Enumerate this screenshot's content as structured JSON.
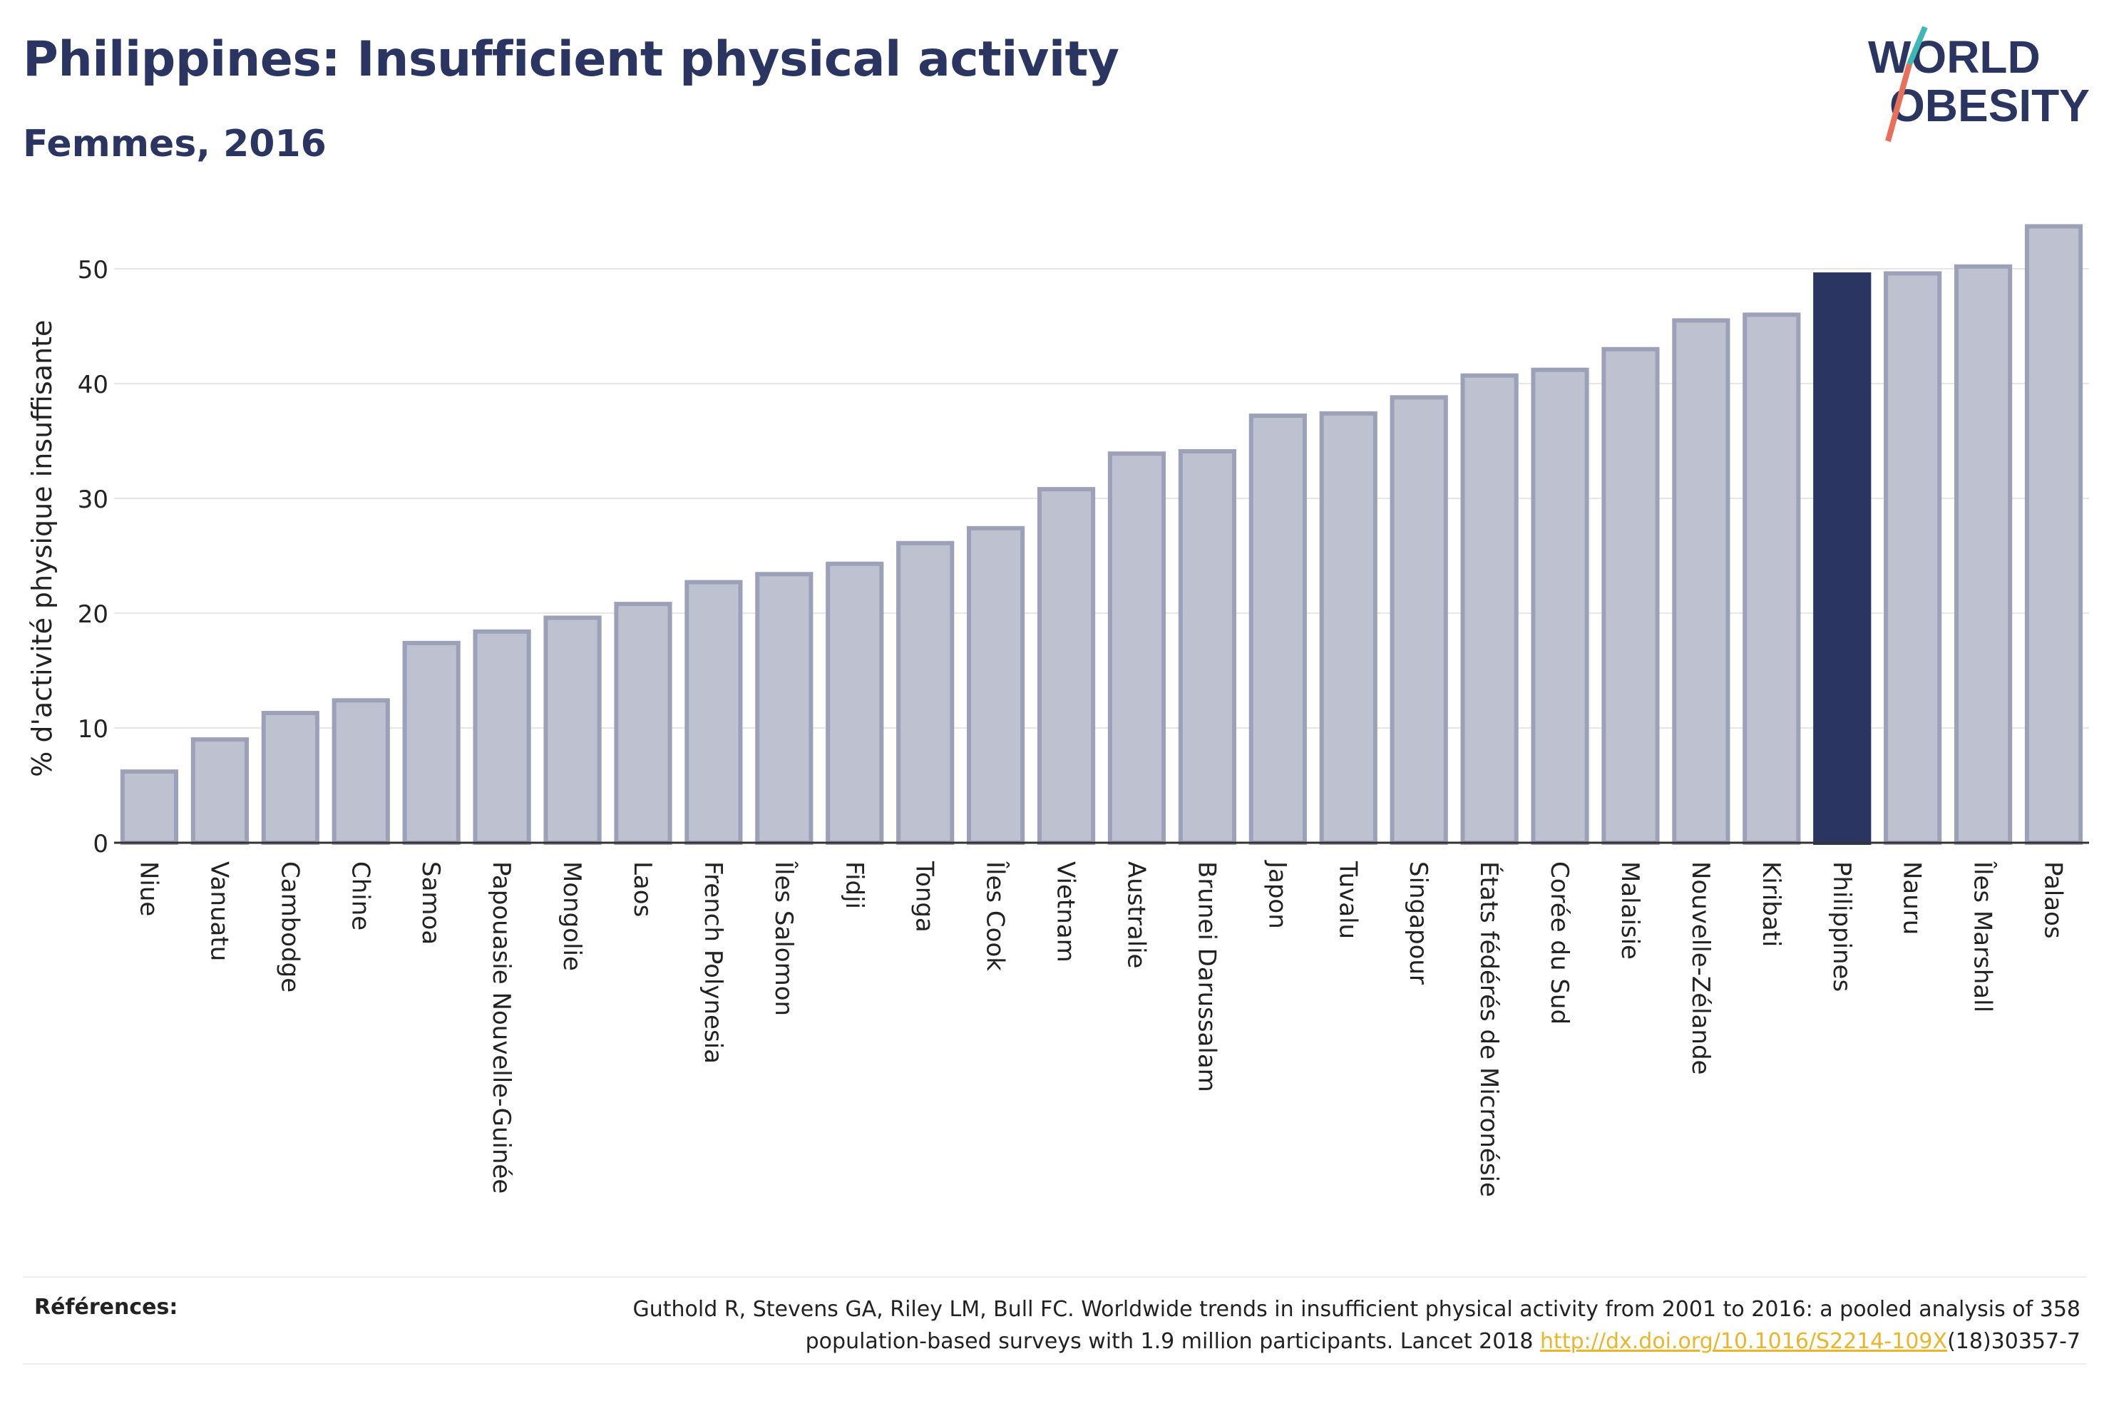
{
  "header": {
    "title": "Philippines: Insufficient physical activity",
    "subtitle": "Femmes, 2016"
  },
  "logo": {
    "line1": "WORLD",
    "line2": "OBESITY"
  },
  "chart_data": {
    "type": "bar",
    "ylabel": "% d'activité physique insuffisante",
    "xlabel": "",
    "ylim": [
      0,
      55
    ],
    "yticks": [
      0,
      10,
      20,
      30,
      40,
      50
    ],
    "grid": true,
    "highlight": "Philippines",
    "colors": {
      "bar": "#bec1cf",
      "bar_border": "#9da1b8",
      "highlight": "#2b3561",
      "text": "#222222"
    },
    "categories": [
      "Niue",
      "Vanuatu",
      "Cambodge",
      "Chine",
      "Samoa",
      "Papouasie Nouvelle-Guinée",
      "Mongolie",
      "Laos",
      "French Polynesia",
      "Îles Salomon",
      "Fidji",
      "Tonga",
      "Îles Cook",
      "Vietnam",
      "Australie",
      "Brunei Darussalam",
      "Japon",
      "Tuvalu",
      "Singapour",
      "États fédérés de Micronésie",
      "Corée du Sud",
      "Malaisie",
      "Nouvelle-Zélande",
      "Kiribati",
      "Philippines",
      "Nauru",
      "Îles Marshall",
      "Palaos"
    ],
    "values": [
      6.2,
      9.0,
      11.3,
      12.4,
      17.4,
      18.4,
      19.6,
      20.8,
      22.7,
      23.4,
      24.3,
      26.1,
      27.4,
      30.8,
      33.9,
      34.1,
      37.2,
      37.4,
      38.8,
      40.7,
      41.2,
      43.0,
      45.5,
      46.0,
      49.5,
      49.6,
      50.2,
      53.7
    ]
  },
  "references": {
    "label": "Références:",
    "line1": "Guthold R, Stevens GA, Riley LM, Bull FC. Worldwide trends in insufficient physical activity from 2001 to 2016: a pooled analysis of 358",
    "line2_pre": "population-based surveys with 1.9 million participants. Lancet 2018 ",
    "link": "http://dx.doi.org/10.1016/S2214-109X",
    "line2_post": "(18)30357-7"
  }
}
